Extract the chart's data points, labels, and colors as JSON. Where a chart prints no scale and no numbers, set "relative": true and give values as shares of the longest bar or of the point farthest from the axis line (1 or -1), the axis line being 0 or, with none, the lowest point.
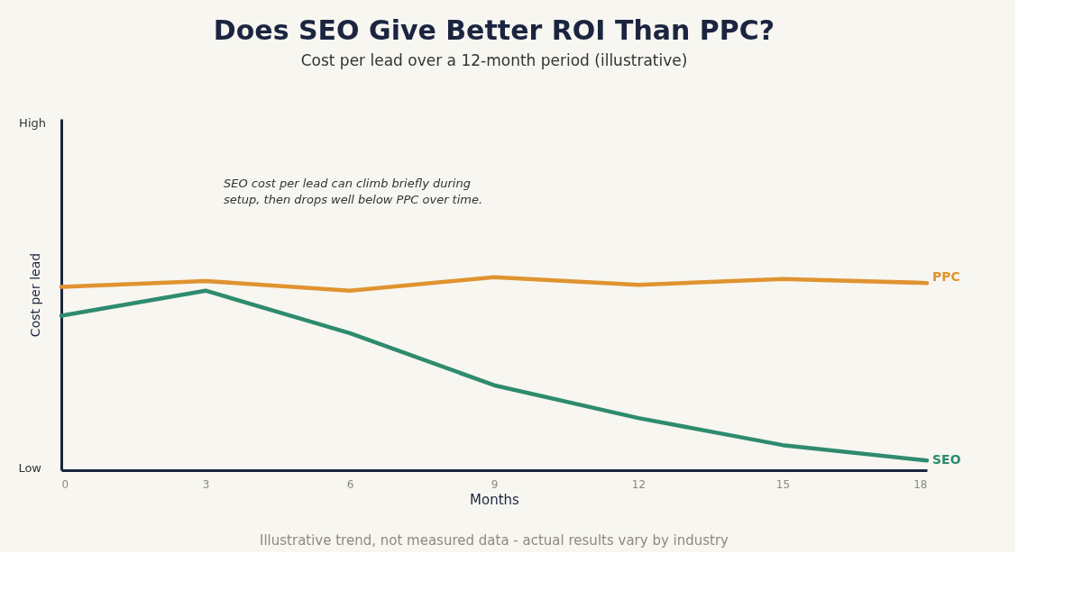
{
  "chart_data": {
    "type": "line",
    "title": "Does SEO Give Better ROI Than PPC?",
    "subtitle": "Cost per lead over a 12-month period (illustrative)",
    "xlabel": "Months",
    "ylabel": "Cost per lead",
    "relative": true,
    "x": [
      0,
      3,
      6,
      9,
      12,
      15,
      18
    ],
    "xlim": [
      0,
      18
    ],
    "xticks": [
      0,
      3,
      6,
      9,
      12,
      15,
      18
    ],
    "series": [
      {
        "name": "PPC",
        "color": "#e09330",
        "values": [
          0.95,
          0.98,
          0.93,
          1,
          0.96,
          0.99,
          0.97
        ]
      },
      {
        "name": "SEO",
        "color": "#2e8b6e",
        "values": [
          0.8,
          0.93,
          0.71,
          0.44,
          0.27,
          0.13,
          0.05
        ]
      }
    ],
    "annotations": [
      "SEO cost per lead can climb briefly during setup, then drops well below PPC over time.",
      "High",
      "Low",
      "Illustrative trend, not measured data - actual results vary by industry"
    ],
    "grid": false,
    "marker": "none",
    "line_style": "solid"
  }
}
